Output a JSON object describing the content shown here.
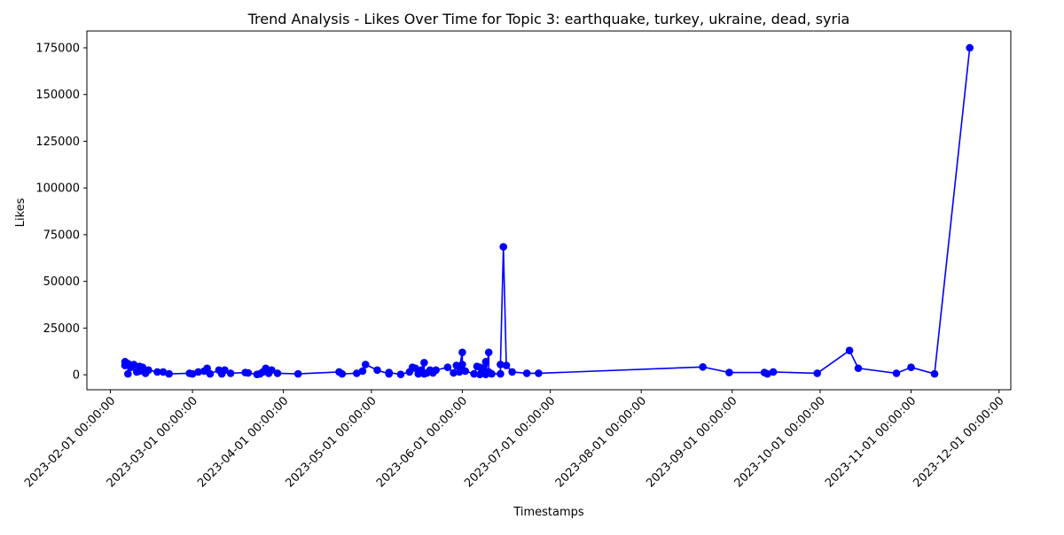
{
  "chart_data": {
    "type": "line",
    "title": "Trend Analysis - Likes Over Time for Topic 3: earthquake, turkey, ukraine, dead, syria",
    "xlabel": "Timestamps",
    "ylabel": "Likes",
    "xlim": [
      "2023-01-24",
      "2023-12-05"
    ],
    "ylim": [
      -8000,
      184000
    ],
    "x_ticks": [
      "2023-02-01 00:00:00",
      "2023-03-01 00:00:00",
      "2023-04-01 00:00:00",
      "2023-05-01 00:00:00",
      "2023-06-01 00:00:00",
      "2023-07-01 00:00:00",
      "2023-08-01 00:00:00",
      "2023-09-01 00:00:00",
      "2023-10-01 00:00:00",
      "2023-11-01 00:00:00",
      "2023-12-01 00:00:00"
    ],
    "y_ticks": [
      0,
      25000,
      50000,
      75000,
      100000,
      125000,
      150000,
      175000
    ],
    "grid": false,
    "series": [
      {
        "color": "#0000ff",
        "marker": "circle",
        "points": [
          [
            "2023-02-06",
            5000
          ],
          [
            "2023-02-06",
            7000
          ],
          [
            "2023-02-07",
            6000
          ],
          [
            "2023-02-07",
            500
          ],
          [
            "2023-02-08",
            4000
          ],
          [
            "2023-02-09",
            5500
          ],
          [
            "2023-02-10",
            1500
          ],
          [
            "2023-02-11",
            4500
          ],
          [
            "2023-02-11",
            2000
          ],
          [
            "2023-02-12",
            4000
          ],
          [
            "2023-02-13",
            800
          ],
          [
            "2023-02-14",
            2500
          ],
          [
            "2023-02-17",
            1500
          ],
          [
            "2023-02-19",
            1500
          ],
          [
            "2023-02-21",
            500
          ],
          [
            "2023-02-28",
            800
          ],
          [
            "2023-03-01",
            500
          ],
          [
            "2023-03-03",
            1500
          ],
          [
            "2023-03-05",
            2000
          ],
          [
            "2023-03-06",
            3500
          ],
          [
            "2023-03-07",
            500
          ],
          [
            "2023-03-10",
            2500
          ],
          [
            "2023-03-11",
            500
          ],
          [
            "2023-03-12",
            2500
          ],
          [
            "2023-03-14",
            800
          ],
          [
            "2023-03-19",
            1200
          ],
          [
            "2023-03-20",
            1000
          ],
          [
            "2023-03-23",
            200
          ],
          [
            "2023-03-24",
            500
          ],
          [
            "2023-03-25",
            1500
          ],
          [
            "2023-03-26",
            3500
          ],
          [
            "2023-03-27",
            800
          ],
          [
            "2023-03-28",
            2500
          ],
          [
            "2023-03-30",
            800
          ],
          [
            "2023-04-06",
            500
          ],
          [
            "2023-04-20",
            1500
          ],
          [
            "2023-04-21",
            500
          ],
          [
            "2023-04-26",
            800
          ],
          [
            "2023-04-28",
            2000
          ],
          [
            "2023-04-29",
            5500
          ],
          [
            "2023-05-03",
            2500
          ],
          [
            "2023-05-07",
            500
          ],
          [
            "2023-05-07",
            1200
          ],
          [
            "2023-05-11",
            200
          ],
          [
            "2023-05-14",
            1500
          ],
          [
            "2023-05-15",
            4000
          ],
          [
            "2023-05-16",
            3500
          ],
          [
            "2023-05-17",
            500
          ],
          [
            "2023-05-18",
            2500
          ],
          [
            "2023-05-19",
            6500
          ],
          [
            "2023-05-19",
            500
          ],
          [
            "2023-05-20",
            1000
          ],
          [
            "2023-05-21",
            2500
          ],
          [
            "2023-05-22",
            1000
          ],
          [
            "2023-05-23",
            2500
          ],
          [
            "2023-05-27",
            4000
          ],
          [
            "2023-05-29",
            1000
          ],
          [
            "2023-05-30",
            5000
          ],
          [
            "2023-05-31",
            1500
          ],
          [
            "2023-05-31",
            4000
          ],
          [
            "2023-06-01",
            12000
          ],
          [
            "2023-06-01",
            5500
          ],
          [
            "2023-06-02",
            2000
          ],
          [
            "2023-06-05",
            500
          ],
          [
            "2023-06-06",
            4500
          ],
          [
            "2023-06-07",
            4000
          ],
          [
            "2023-06-07",
            200
          ],
          [
            "2023-06-08",
            3500
          ],
          [
            "2023-06-09",
            7000
          ],
          [
            "2023-06-09",
            200
          ],
          [
            "2023-06-10",
            12000
          ],
          [
            "2023-06-10",
            1500
          ],
          [
            "2023-06-11",
            500
          ],
          [
            "2023-06-14",
            500
          ],
          [
            "2023-06-14",
            5500
          ],
          [
            "2023-06-15",
            68500
          ],
          [
            "2023-06-16",
            5000
          ],
          [
            "2023-06-18",
            1500
          ],
          [
            "2023-06-23",
            800
          ],
          [
            "2023-06-27",
            800
          ],
          [
            "2023-08-22",
            4200
          ],
          [
            "2023-08-31",
            1200
          ],
          [
            "2023-09-12",
            1200
          ],
          [
            "2023-09-13",
            500
          ],
          [
            "2023-09-15",
            1500
          ],
          [
            "2023-09-30",
            800
          ],
          [
            "2023-10-11",
            13000
          ],
          [
            "2023-10-14",
            3500
          ],
          [
            "2023-10-27",
            800
          ],
          [
            "2023-11-01",
            4000
          ],
          [
            "2023-11-09",
            500
          ],
          [
            "2023-11-21",
            175000
          ]
        ]
      }
    ]
  }
}
